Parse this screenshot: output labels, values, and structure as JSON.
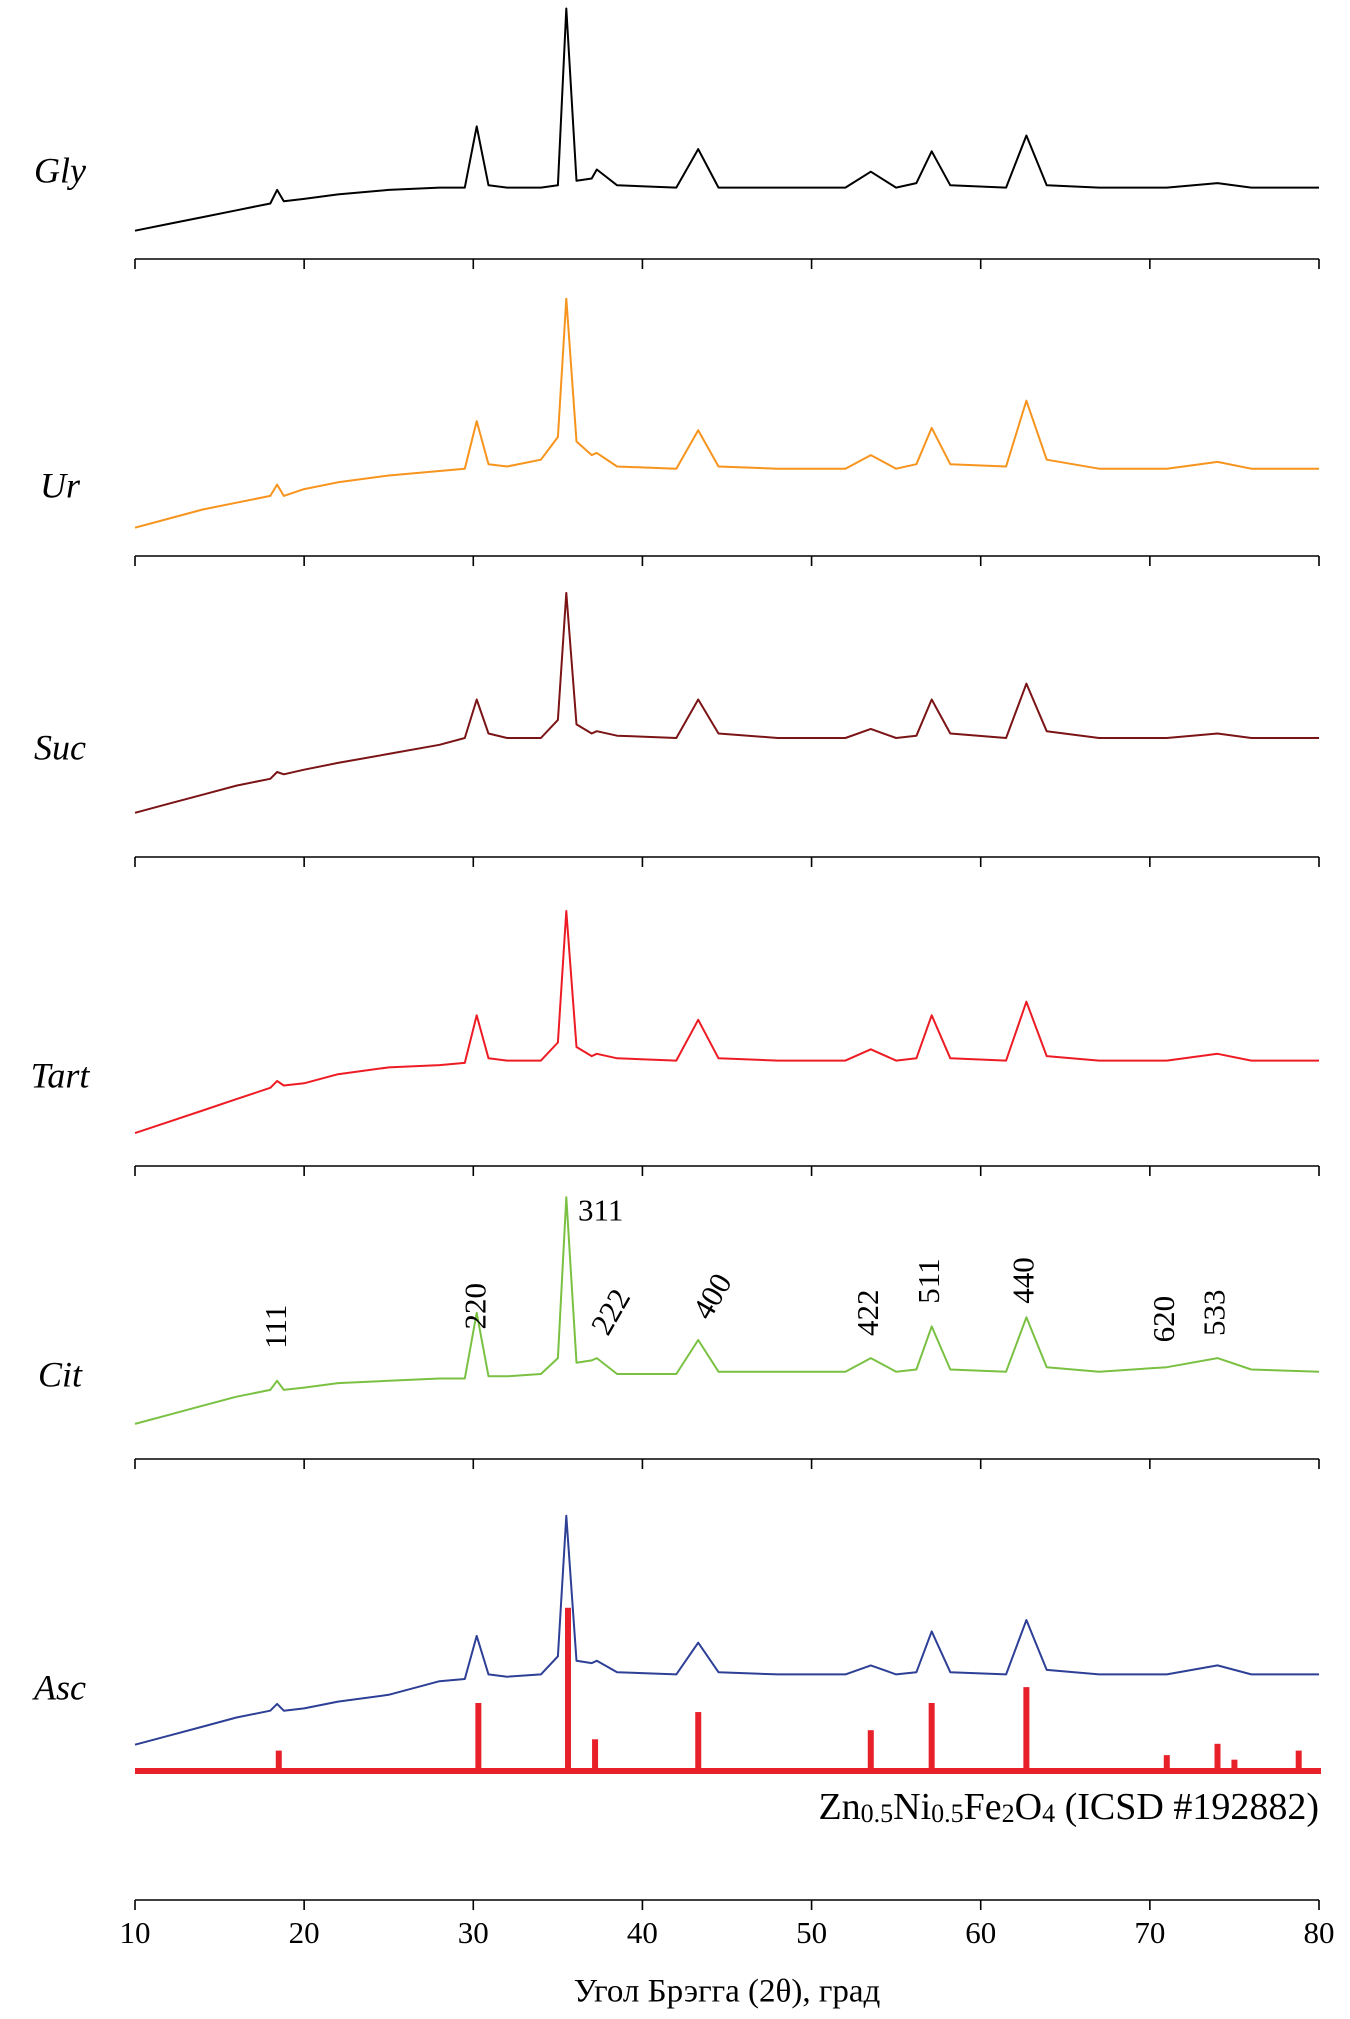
{
  "chart_data": [
    {
      "type": "line",
      "label": "Gly",
      "color": "#000000",
      "x": [
        10,
        12,
        14,
        16,
        18,
        18.4,
        18.8,
        20,
        22,
        25,
        28,
        29.5,
        30.2,
        30.9,
        32,
        34,
        35,
        35.5,
        36.1,
        37,
        37.3,
        38.5,
        42,
        43.3,
        44.5,
        48,
        52,
        53.5,
        55,
        56.2,
        57.1,
        58.2,
        61.5,
        62.7,
        63.9,
        67,
        71,
        74,
        76,
        80
      ],
      "values": [
        0,
        3,
        6,
        9,
        12,
        18,
        13,
        14,
        16,
        18,
        19,
        19,
        46,
        20,
        19,
        19,
        20,
        98,
        22,
        23,
        27,
        20,
        19,
        36,
        19,
        19,
        19,
        26,
        19,
        21,
        35,
        20,
        19,
        42,
        20,
        19,
        19,
        21,
        19,
        19
      ],
      "xlim": [
        10,
        80
      ],
      "ylim": [
        0,
        105
      ],
      "xticks": [
        10,
        20,
        30,
        40,
        50,
        60,
        70,
        80
      ]
    },
    {
      "type": "line",
      "label": "Ur",
      "color": "#f7941d",
      "x": [
        10,
        12,
        14,
        16,
        18,
        18.4,
        18.8,
        20,
        22,
        25,
        28,
        29.5,
        30.2,
        30.9,
        32,
        34,
        35,
        35.5,
        36.1,
        37,
        37.3,
        38.5,
        42,
        43.3,
        44.5,
        48,
        52,
        53.5,
        55,
        56.2,
        57.1,
        58.2,
        61.5,
        62.7,
        63.9,
        67,
        71,
        74,
        76,
        80
      ],
      "values": [
        0,
        4,
        8,
        11,
        14,
        19,
        14,
        17,
        20,
        23,
        25,
        26,
        47,
        28,
        27,
        30,
        40,
        101,
        38,
        32,
        33,
        27,
        26,
        43,
        27,
        26,
        26,
        32,
        26,
        28,
        44,
        28,
        27,
        56,
        30,
        26,
        26,
        29,
        26,
        26
      ],
      "xlim": [
        10,
        80
      ],
      "ylim": [
        0,
        105
      ],
      "xticks": [
        10,
        20,
        30,
        40,
        50,
        60,
        70,
        80
      ]
    },
    {
      "type": "line",
      "label": "Suc",
      "color": "#7b1416",
      "x": [
        10,
        12,
        14,
        16,
        18,
        18.4,
        18.8,
        20,
        22,
        25,
        28,
        29.5,
        30.2,
        30.9,
        32,
        34,
        35,
        35.5,
        36.1,
        37,
        37.3,
        38.5,
        42,
        43.3,
        44.5,
        48,
        52,
        53.5,
        55,
        56.2,
        57.1,
        58.2,
        61.5,
        62.7,
        63.9,
        67,
        71,
        74,
        76,
        80
      ],
      "values": [
        7,
        11,
        15,
        19,
        22,
        25,
        24,
        26,
        29,
        33,
        37,
        40,
        57,
        42,
        40,
        40,
        48,
        104,
        46,
        42,
        43,
        41,
        40,
        57,
        42,
        40,
        40,
        44,
        40,
        41,
        57,
        42,
        40,
        64,
        43,
        40,
        40,
        42,
        40,
        40
      ],
      "xlim": [
        10,
        80
      ],
      "ylim": [
        0,
        105
      ],
      "xticks": [
        10,
        20,
        30,
        40,
        50,
        60,
        70,
        80
      ]
    },
    {
      "type": "line",
      "label": "Tart",
      "color": "#ed1c24",
      "x": [
        10,
        12,
        14,
        16,
        18,
        18.4,
        18.8,
        20,
        22,
        25,
        28,
        29.5,
        30.2,
        30.9,
        32,
        34,
        35,
        35.5,
        36.1,
        37,
        37.3,
        38.5,
        42,
        43.3,
        44.5,
        48,
        52,
        53.5,
        55,
        56.2,
        57.1,
        58.2,
        61.5,
        62.7,
        63.9,
        67,
        71,
        74,
        76,
        80
      ],
      "values": [
        2,
        7,
        12,
        17,
        22,
        25,
        23,
        24,
        28,
        31,
        32,
        33,
        54,
        35,
        34,
        34,
        42,
        100,
        40,
        36,
        37,
        35,
        34,
        52,
        35,
        34,
        34,
        39,
        34,
        35,
        54,
        35,
        34,
        60,
        36,
        34,
        34,
        37,
        34,
        34
      ],
      "xlim": [
        10,
        80
      ],
      "ylim": [
        0,
        105
      ],
      "xticks": [
        10,
        20,
        30,
        40,
        50,
        60,
        70,
        80
      ]
    },
    {
      "type": "line",
      "label": "Cit",
      "color": "#7ac143",
      "x": [
        10,
        12,
        14,
        16,
        18,
        18.4,
        18.8,
        20,
        22,
        25,
        28,
        29.5,
        30.2,
        30.9,
        32,
        34,
        35,
        35.5,
        36.1,
        37,
        37.3,
        38.5,
        42,
        43.3,
        44.5,
        48,
        52,
        53.5,
        55,
        56.2,
        57.1,
        58.2,
        61.5,
        62.7,
        63.9,
        67,
        71,
        74,
        76,
        80
      ],
      "values": [
        3,
        7,
        11,
        15,
        18,
        22,
        18,
        19,
        21,
        22,
        23,
        23,
        52,
        24,
        24,
        25,
        32,
        103,
        30,
        31,
        32,
        25,
        25,
        40,
        26,
        26,
        26,
        32,
        26,
        27,
        46,
        27,
        26,
        50,
        28,
        26,
        28,
        32,
        27,
        26
      ],
      "xlim": [
        10,
        80
      ],
      "ylim": [
        0,
        105
      ],
      "xticks": [
        10,
        20,
        30,
        40,
        50,
        60,
        70,
        80
      ],
      "annotations": [
        {
          "x": 18.5,
          "text": "111"
        },
        {
          "x": 30.3,
          "text": "220"
        },
        {
          "x": 35.6,
          "text": "311"
        },
        {
          "x": 37.3,
          "text": "222"
        },
        {
          "x": 43.3,
          "text": "400"
        },
        {
          "x": 53.5,
          "text": "422"
        },
        {
          "x": 57.1,
          "text": "511"
        },
        {
          "x": 62.7,
          "text": "440"
        },
        {
          "x": 71.0,
          "text": "620"
        },
        {
          "x": 74.0,
          "text": "533"
        }
      ]
    },
    {
      "type": "line",
      "label": "Asc",
      "color": "#2e3f96",
      "x": [
        10,
        12,
        14,
        16,
        18,
        18.4,
        18.8,
        20,
        22,
        25,
        28,
        29.5,
        30.2,
        30.9,
        32,
        34,
        35,
        35.5,
        36.1,
        37,
        37.3,
        38.5,
        42,
        43.3,
        44.5,
        48,
        52,
        53.5,
        55,
        56.2,
        57.1,
        58.2,
        61.5,
        62.7,
        63.9,
        67,
        71,
        74,
        76,
        80
      ],
      "values": [
        56,
        60,
        64,
        68,
        71,
        74,
        71,
        72,
        75,
        78,
        84,
        85,
        104,
        87,
        86,
        87,
        95,
        157,
        93,
        92,
        93,
        88,
        87,
        101,
        88,
        87,
        87,
        91,
        87,
        88,
        106,
        88,
        87,
        111,
        89,
        87,
        87,
        91,
        87,
        87
      ],
      "xlim": [
        10,
        80
      ],
      "ylim": [
        0,
        160
      ],
      "xticks": [
        10,
        20,
        30,
        40,
        50,
        60,
        70,
        80
      ],
      "x_label": "Угол Брэгга (2θ), град",
      "reference": {
        "label_parts": [
          "Zn",
          "0.5",
          "Ni",
          "0.5",
          "Fe",
          "2",
          "O",
          "4",
          " (ICSD #192882)"
        ],
        "color": "#e8202a",
        "x": [
          18.5,
          30.3,
          35.6,
          37.2,
          43.3,
          53.5,
          57.1,
          62.7,
          71.0,
          74.0,
          75.0,
          78.8
        ],
        "values": [
          9,
          30,
          72,
          14,
          26,
          18,
          30,
          37,
          7,
          12,
          5,
          9
        ]
      }
    }
  ]
}
